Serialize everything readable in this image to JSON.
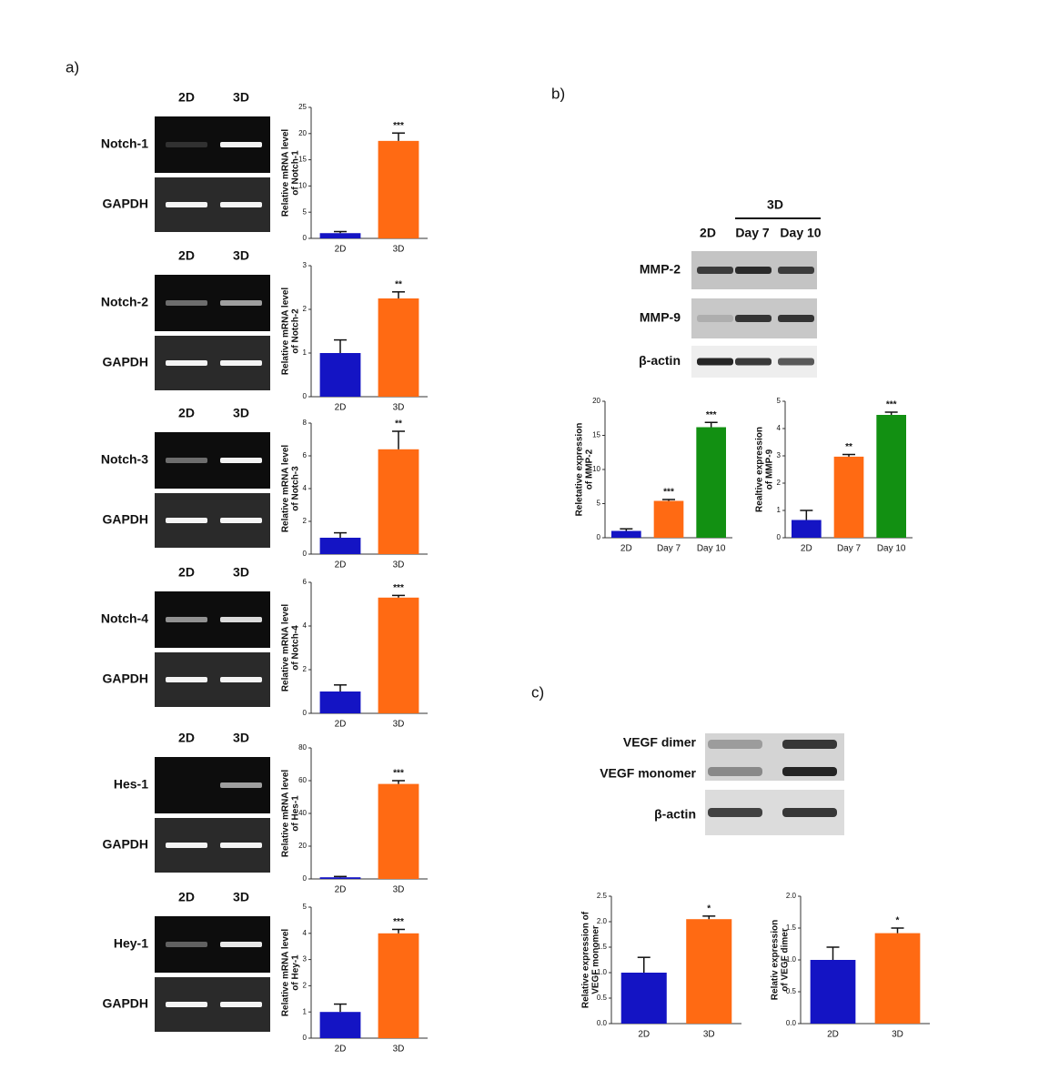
{
  "panels": [
    "a)",
    "b)",
    "c)"
  ],
  "gels": [
    {
      "lanes": [
        "2D",
        "3D"
      ],
      "rows": [
        "Notch-1",
        "GAPDH"
      ]
    },
    {
      "lanes": [
        "2D",
        "3D"
      ],
      "rows": [
        "Notch-2",
        "GAPDH"
      ]
    },
    {
      "lanes": [
        "2D",
        "3D"
      ],
      "rows": [
        "Notch-3",
        "GAPDH"
      ]
    },
    {
      "lanes": [
        "2D",
        "3D"
      ],
      "rows": [
        "Notch-4",
        "GAPDH"
      ]
    },
    {
      "lanes": [
        "2D",
        "3D"
      ],
      "rows": [
        "Hes-1",
        "GAPDH"
      ]
    },
    {
      "lanes": [
        "2D",
        "3D"
      ],
      "rows": [
        "Hey-1",
        "GAPDH"
      ]
    },
    {
      "group": "3D",
      "lanes": [
        "2D",
        "Day 7",
        "Day 10"
      ],
      "rows": [
        "MMP-2",
        "MMP-9",
        "β-actin"
      ]
    },
    {
      "rows": [
        "VEGF dimer",
        "VEGF monomer",
        "β-actin"
      ]
    }
  ],
  "chart_data": [
    {
      "type": "bar",
      "ylabel": [
        "Relative mRNA level",
        "of Notch-1"
      ],
      "categories": [
        "2D",
        "3D"
      ],
      "values": [
        1.0,
        18.6
      ],
      "errors": [
        0.3,
        1.5
      ],
      "colors": [
        "#1414c4",
        "#ff6a13"
      ],
      "ylim": [
        0,
        25
      ],
      "yticks": [
        0,
        5,
        10,
        15,
        20,
        25
      ],
      "annotations": [
        null,
        "***"
      ]
    },
    {
      "type": "bar",
      "ylabel": [
        "Relative mRNA level",
        "of Notch-2"
      ],
      "categories": [
        "2D",
        "3D"
      ],
      "values": [
        1.0,
        2.25
      ],
      "errors": [
        0.3,
        0.15
      ],
      "colors": [
        "#1414c4",
        "#ff6a13"
      ],
      "ylim": [
        0,
        3
      ],
      "yticks": [
        0,
        1,
        2,
        3
      ],
      "annotations": [
        null,
        "**"
      ]
    },
    {
      "type": "bar",
      "ylabel": [
        "Relative mRNA level",
        "of Notch-3"
      ],
      "categories": [
        "2D",
        "3D"
      ],
      "values": [
        1.0,
        6.4
      ],
      "errors": [
        0.3,
        1.1
      ],
      "colors": [
        "#1414c4",
        "#ff6a13"
      ],
      "ylim": [
        0,
        8
      ],
      "yticks": [
        0,
        2,
        4,
        6,
        8
      ],
      "annotations": [
        null,
        "**"
      ]
    },
    {
      "type": "bar",
      "ylabel": [
        "Relative mRNA level",
        "of Notch-4"
      ],
      "categories": [
        "2D",
        "3D"
      ],
      "values": [
        1.0,
        5.3
      ],
      "errors": [
        0.3,
        0.1
      ],
      "colors": [
        "#1414c4",
        "#ff6a13"
      ],
      "ylim": [
        0,
        6
      ],
      "yticks": [
        0,
        2,
        4,
        6
      ],
      "annotations": [
        null,
        "***"
      ]
    },
    {
      "type": "bar",
      "ylabel": [
        "Relative mRNA level",
        "of Hes-1"
      ],
      "categories": [
        "2D",
        "3D"
      ],
      "values": [
        1.0,
        58
      ],
      "errors": [
        0.5,
        2
      ],
      "colors": [
        "#1414c4",
        "#ff6a13"
      ],
      "ylim": [
        0,
        80
      ],
      "yticks": [
        0,
        20,
        40,
        60,
        80
      ],
      "annotations": [
        null,
        "***"
      ]
    },
    {
      "type": "bar",
      "ylabel": [
        "Relative mRNA level",
        "of Hey-1"
      ],
      "categories": [
        "2D",
        "3D"
      ],
      "values": [
        1.0,
        4.0
      ],
      "errors": [
        0.3,
        0.15
      ],
      "colors": [
        "#1414c4",
        "#ff6a13"
      ],
      "ylim": [
        0,
        5
      ],
      "yticks": [
        0,
        1,
        2,
        3,
        4,
        5
      ],
      "annotations": [
        null,
        "***"
      ]
    },
    {
      "type": "bar",
      "ylabel": [
        "Reletative expression",
        "of MMP-2"
      ],
      "categories": [
        "2D",
        "Day 7",
        "Day 10"
      ],
      "values": [
        1.0,
        5.4,
        16.2
      ],
      "errors": [
        0.3,
        0.2,
        0.7
      ],
      "colors": [
        "#1414c4",
        "#ff6a13",
        "#129012"
      ],
      "ylim": [
        0,
        20
      ],
      "yticks": [
        0,
        5,
        10,
        15,
        20
      ],
      "annotations": [
        null,
        "***",
        "***"
      ]
    },
    {
      "type": "bar",
      "ylabel": [
        "Realtive expression",
        "of MMP-9"
      ],
      "categories": [
        "2D",
        "Day 7",
        "Day 10"
      ],
      "values": [
        0.65,
        2.97,
        4.5
      ],
      "errors": [
        0.35,
        0.08,
        0.1
      ],
      "colors": [
        "#1414c4",
        "#ff6a13",
        "#129012"
      ],
      "ylim": [
        0,
        5
      ],
      "yticks": [
        0,
        1,
        2,
        3,
        4,
        5
      ],
      "annotations": [
        null,
        "**",
        "***"
      ]
    },
    {
      "type": "bar",
      "ylabel": [
        "Relative expression of",
        "VEGF monomer"
      ],
      "categories": [
        "2D",
        "3D"
      ],
      "values": [
        1.0,
        2.05
      ],
      "errors": [
        0.3,
        0.06
      ],
      "colors": [
        "#1414c4",
        "#ff6a13"
      ],
      "ylim": [
        0,
        2.5
      ],
      "yticks": [
        {
          "value": 0,
          "label": "0.0"
        },
        0.5,
        {
          "value": 1,
          "label": "1.0"
        },
        1.5,
        {
          "value": 2,
          "label": "2.0"
        },
        2.5
      ],
      "annotations": [
        null,
        "*"
      ]
    },
    {
      "type": "bar",
      "ylabel": [
        "Relativ expression",
        "of VEGF dimer"
      ],
      "categories": [
        "2D",
        "3D"
      ],
      "values": [
        1.0,
        1.42
      ],
      "errors": [
        0.2,
        0.08
      ],
      "colors": [
        "#1414c4",
        "#ff6a13"
      ],
      "ylim": [
        0,
        2
      ],
      "yticks": [
        {
          "value": 0,
          "label": "0.0"
        },
        0.5,
        {
          "value": 1,
          "label": "1.0"
        },
        1.5,
        {
          "value": 2,
          "label": "2.0"
        }
      ],
      "annotations": [
        null,
        "*"
      ]
    }
  ]
}
